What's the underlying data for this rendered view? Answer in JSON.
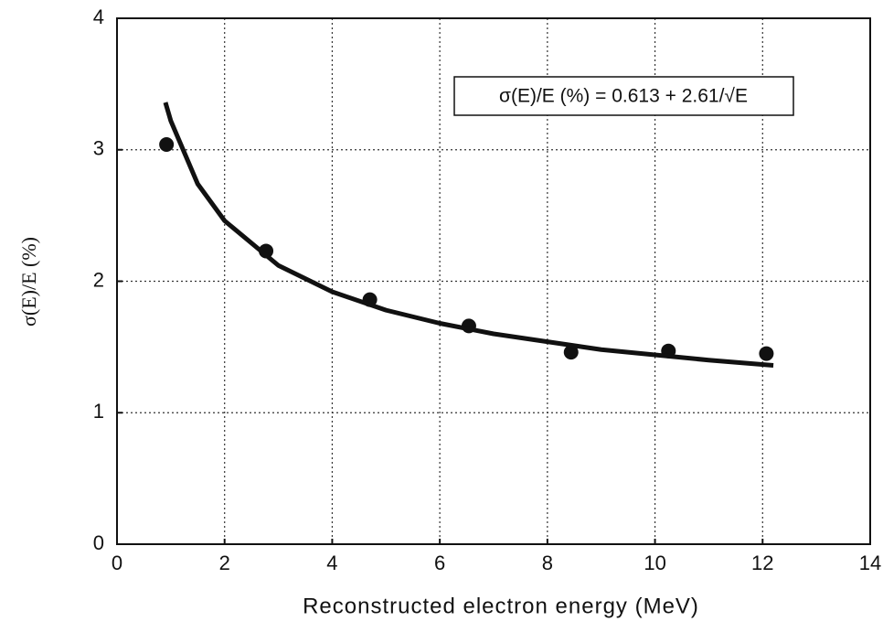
{
  "chart_data": {
    "type": "scatter",
    "xlabel": "Reconstructed electron energy (MeV)",
    "ylabel": "σ(E)/E (%)",
    "annotation": "σ(E)/E (%) = 0.613 + 2.61/√E",
    "xlim": [
      0,
      14
    ],
    "xticks": [
      0,
      2,
      4,
      6,
      8,
      10,
      12,
      14
    ],
    "ylim": [
      0,
      4
    ],
    "yticks": [
      0,
      1,
      2,
      3,
      4
    ],
    "grid": true,
    "series": [
      {
        "type": "scatter",
        "color": "#111",
        "x": [
          0.92,
          2.77,
          4.7,
          6.54,
          8.44,
          10.25,
          12.07
        ],
        "values": [
          3.04,
          2.23,
          1.86,
          1.66,
          1.46,
          1.47,
          1.45
        ]
      },
      {
        "type": "line",
        "color": "#111",
        "x": [
          0.9,
          1,
          1.5,
          2,
          3,
          4,
          5,
          6,
          7,
          8,
          9,
          10,
          11,
          12.2
        ],
        "values": [
          3.36,
          3.22,
          2.74,
          2.46,
          2.12,
          1.92,
          1.78,
          1.68,
          1.6,
          1.54,
          1.48,
          1.44,
          1.4,
          1.36
        ]
      }
    ]
  }
}
